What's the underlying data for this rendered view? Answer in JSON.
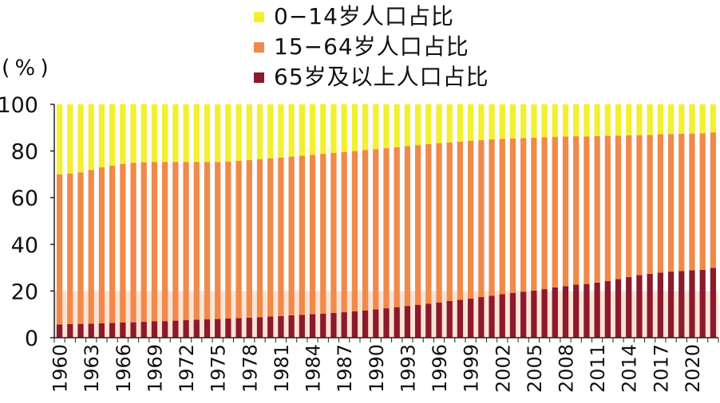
{
  "chart_data": {
    "type": "bar",
    "stacked": true,
    "unit_label": "(%)",
    "x": [
      1960,
      1961,
      1962,
      1963,
      1964,
      1965,
      1966,
      1967,
      1968,
      1969,
      1970,
      1971,
      1972,
      1973,
      1974,
      1975,
      1976,
      1977,
      1978,
      1979,
      1980,
      1981,
      1982,
      1983,
      1984,
      1985,
      1986,
      1987,
      1988,
      1989,
      1990,
      1991,
      1992,
      1993,
      1994,
      1995,
      1996,
      1997,
      1998,
      1999,
      2000,
      2001,
      2002,
      2003,
      2004,
      2005,
      2006,
      2007,
      2008,
      2009,
      2010,
      2011,
      2012,
      2013,
      2014,
      2015,
      2016,
      2017,
      2018,
      2019,
      2020,
      2021,
      2022
    ],
    "x_tick_labels": [
      "1960",
      "1963",
      "1966",
      "1969",
      "1972",
      "1975",
      "1978",
      "1981",
      "1984",
      "1987",
      "1990",
      "1993",
      "1996",
      "1999",
      "2002",
      "2005",
      "2008",
      "2011",
      "2014",
      "2017",
      "2020"
    ],
    "ylim": [
      0,
      100
    ],
    "yticks": [
      "0",
      "20",
      "40",
      "60",
      "80",
      "100"
    ],
    "series": [
      {
        "name": "65岁及以上人口占比",
        "color": "#8b1a2c",
        "values": [
          5.7,
          5.8,
          5.9,
          6.0,
          6.2,
          6.3,
          6.5,
          6.6,
          6.8,
          7.0,
          7.1,
          7.3,
          7.5,
          7.7,
          7.9,
          8.0,
          8.2,
          8.4,
          8.6,
          8.8,
          9.1,
          9.3,
          9.6,
          9.8,
          10.1,
          10.3,
          10.6,
          10.9,
          11.3,
          11.6,
          12.1,
          12.6,
          13.1,
          13.6,
          14.1,
          14.6,
          15.1,
          15.7,
          16.2,
          16.8,
          17.4,
          18.0,
          18.6,
          19.2,
          19.7,
          20.2,
          20.8,
          21.5,
          22.1,
          22.7,
          23.0,
          23.6,
          24.3,
          25.1,
          26.0,
          26.8,
          27.3,
          27.9,
          28.3,
          28.6,
          28.9,
          29.1,
          29.9
        ]
      },
      {
        "name": "15−64岁人口占比",
        "color": "#f08a4b",
        "values": [
          64.3,
          64.6,
          65.0,
          65.9,
          66.8,
          67.4,
          67.9,
          68.4,
          68.4,
          68.3,
          68.2,
          68.0,
          67.8,
          67.6,
          67.4,
          67.3,
          67.3,
          67.4,
          67.5,
          67.7,
          67.8,
          67.9,
          68.0,
          68.2,
          68.3,
          68.5,
          68.6,
          68.7,
          68.7,
          68.8,
          68.7,
          68.6,
          68.5,
          68.5,
          68.4,
          68.4,
          68.3,
          68.0,
          67.8,
          67.6,
          67.3,
          67.0,
          66.6,
          66.2,
          65.8,
          65.5,
          65.1,
          64.6,
          64.1,
          63.6,
          63.2,
          62.8,
          62.2,
          61.5,
          60.7,
          60.0,
          59.6,
          59.3,
          59.0,
          58.8,
          58.6,
          58.5,
          58.1
        ]
      },
      {
        "name": "0−14岁人口占比",
        "color": "#f2f030",
        "values": [
          30.0,
          29.6,
          29.1,
          28.1,
          27.0,
          26.3,
          25.6,
          25.0,
          24.8,
          24.7,
          24.7,
          24.7,
          24.7,
          24.7,
          24.7,
          24.7,
          24.5,
          24.2,
          23.9,
          23.5,
          23.1,
          22.8,
          22.4,
          22.0,
          21.6,
          21.2,
          20.8,
          20.4,
          20.0,
          19.6,
          19.2,
          18.8,
          18.4,
          17.9,
          17.5,
          17.0,
          16.6,
          16.3,
          16.0,
          15.6,
          15.3,
          15.0,
          14.8,
          14.6,
          14.5,
          14.3,
          14.1,
          13.9,
          13.8,
          13.7,
          13.8,
          13.6,
          13.5,
          13.4,
          13.3,
          13.2,
          13.1,
          12.8,
          12.7,
          12.6,
          12.5,
          12.4,
          12.0
        ]
      }
    ],
    "legend": [
      {
        "label": "0−14岁人口占比",
        "color": "#f2f030"
      },
      {
        "label": "15−64岁人口占比",
        "color": "#f08a4b"
      },
      {
        "label": "65岁及以上人口占比",
        "color": "#8b1a2c"
      }
    ],
    "legend_position": "top",
    "grid": false
  }
}
